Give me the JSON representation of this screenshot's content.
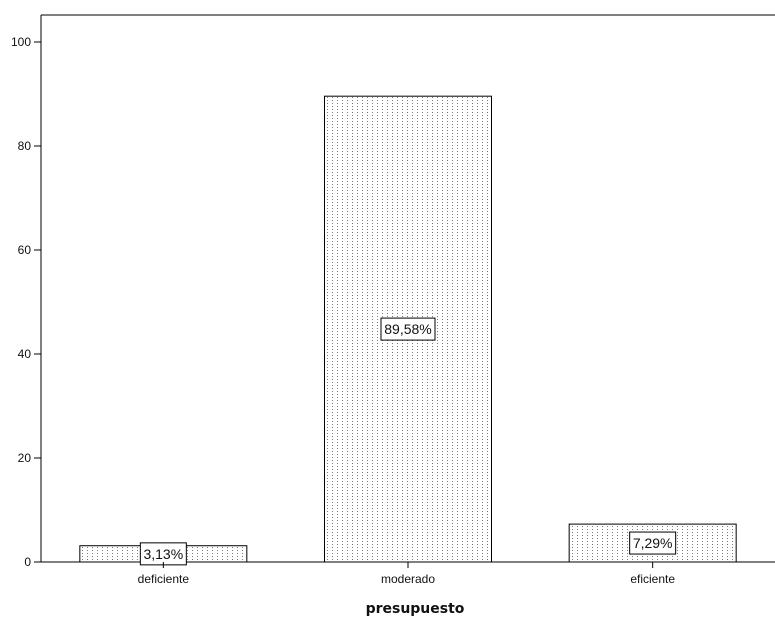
{
  "chart_data": {
    "type": "bar",
    "title": "",
    "xlabel": "presupuesto",
    "ylabel": "",
    "categories": [
      "deficiente",
      "moderado",
      "eficiente"
    ],
    "values": [
      3.13,
      89.58,
      7.29
    ],
    "data_labels": [
      "3,13%",
      "89,58%",
      "7,29%"
    ],
    "ylim": [
      0,
      100
    ],
    "yticks": [
      0,
      20,
      40,
      60,
      80,
      100
    ],
    "grid": false,
    "legend": "none",
    "bar_fill": "dotted-pattern",
    "bar_stroke": "#000000"
  }
}
